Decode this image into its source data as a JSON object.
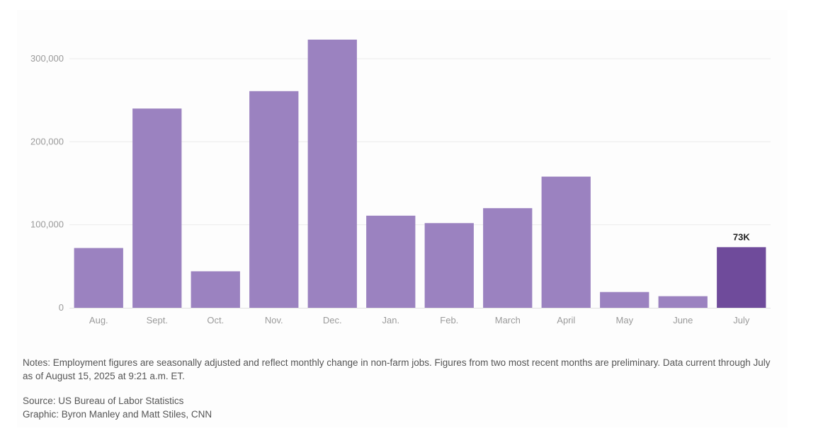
{
  "chart_data": {
    "type": "bar",
    "categories": [
      "Aug.",
      "Sept.",
      "Oct.",
      "Nov.",
      "Dec.",
      "Jan.",
      "Feb.",
      "March",
      "April",
      "May",
      "June",
      "July"
    ],
    "values": [
      72000,
      240000,
      44000,
      261000,
      323000,
      111000,
      102000,
      120000,
      158000,
      19000,
      14000,
      73000
    ],
    "highlight_index": 11,
    "highlight_label": "73K",
    "y_ticks": [
      0,
      100000,
      200000,
      300000
    ],
    "y_tick_labels": [
      "0",
      "100,000",
      "200,000",
      "300,000"
    ],
    "ylim": [
      0,
      330000
    ],
    "grid": true,
    "colors": {
      "bar": "#9b82c0",
      "highlight": "#6f4b9b",
      "grid": "#ececec",
      "axis_text": "#9a9a9a"
    }
  },
  "notes": "Notes: Employment figures are seasonally adjusted and reflect monthly change in non-farm jobs. Figures from two most recent months are preliminary. Data current through July as of August 15, 2025 at 9:21 a.m. ET.",
  "source": "Source: US Bureau of Labor Statistics",
  "graphic": "Graphic: Byron Manley and Matt Stiles, CNN"
}
